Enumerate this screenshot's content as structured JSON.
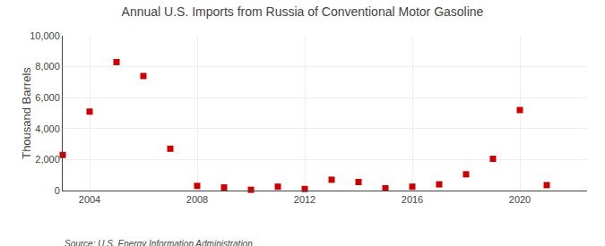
{
  "chart_data": {
    "type": "scatter",
    "title": "Annual U.S. Imports from Russia of Conventional Motor Gasoline",
    "ylabel": "Thousand Barrels",
    "annotations": [
      "Source: U.S. Energy Information Administration"
    ],
    "x": [
      2003,
      2004,
      2005,
      2006,
      2007,
      2008,
      2009,
      2010,
      2011,
      2012,
      2013,
      2014,
      2015,
      2016,
      2017,
      2018,
      2019,
      2020,
      2021
    ],
    "values": [
      2300,
      5100,
      8300,
      7400,
      2700,
      300,
      200,
      50,
      250,
      100,
      700,
      550,
      150,
      250,
      400,
      1050,
      2050,
      5200,
      350
    ],
    "color": "#cc0000",
    "marker": "square",
    "xlim": [
      2003.0,
      2022.5
    ],
    "ylim": [
      0,
      10000
    ],
    "xticks": [
      2004,
      2008,
      2012,
      2016,
      2020
    ],
    "yticks": [
      0,
      {
        "value": 2000,
        "label": "2,000"
      },
      {
        "value": 4000,
        "label": "4,000"
      },
      {
        "value": 6000,
        "label": "6,000"
      },
      {
        "value": 8000,
        "label": "8,000"
      },
      {
        "value": 10000,
        "label": "10,000"
      }
    ],
    "grid": true
  }
}
